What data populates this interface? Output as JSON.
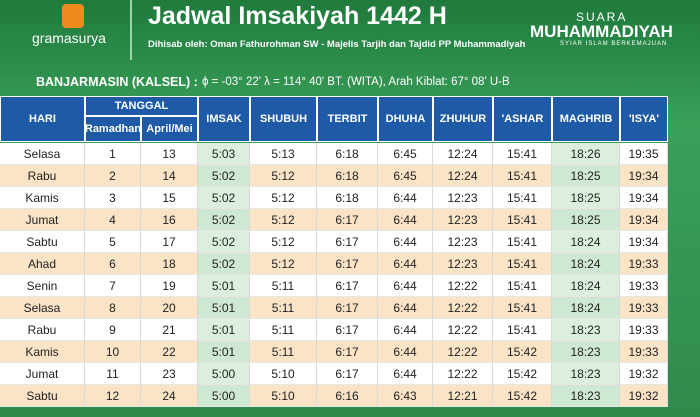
{
  "header": {
    "logo": "gramasurya",
    "title": "Jadwal Imsakiyah 1442 H",
    "subtitle": "Dihisab oleh: Oman Fathurohman SW - Majelis Tarjih dan Tajdid PP Muhammadiyah",
    "brand_top": "SUARA",
    "brand": "MUHAMMADIYAH",
    "brand_tagline": "SYIAR ISLAM BERKEMAJUAN"
  },
  "location": {
    "name": "BANJARMASIN (KALSEL) :",
    "coords": "ϕ = -03° 22'  λ = 114° 40'  BT. (WITA), Arah Kiblat: 67° 08' U-B"
  },
  "table": {
    "group_header": "TANGGAL",
    "columns": [
      "HARI",
      "Ramadhan",
      "April/Mei",
      "IMSAK",
      "SHUBUH",
      "TERBIT",
      "DHUHA",
      "ZHUHUR",
      "'ASHAR",
      "MAGHRIB",
      "'ISYA'"
    ],
    "rows": [
      [
        "Selasa",
        "1",
        "13",
        "5:03",
        "5:13",
        "6:18",
        "6:45",
        "12:24",
        "15:41",
        "18:26",
        "19:35"
      ],
      [
        "Rabu",
        "2",
        "14",
        "5:02",
        "5:12",
        "6:18",
        "6:45",
        "12:24",
        "15:41",
        "18:25",
        "19:34"
      ],
      [
        "Kamis",
        "3",
        "15",
        "5:02",
        "5:12",
        "6:18",
        "6:44",
        "12:23",
        "15:41",
        "18:25",
        "19:34"
      ],
      [
        "Jumat",
        "4",
        "16",
        "5:02",
        "5:12",
        "6:17",
        "6:44",
        "12:23",
        "15:41",
        "18:25",
        "19:34"
      ],
      [
        "Sabtu",
        "5",
        "17",
        "5:02",
        "5:12",
        "6:17",
        "6:44",
        "12:23",
        "15:41",
        "18:24",
        "19:34"
      ],
      [
        "Ahad",
        "6",
        "18",
        "5:02",
        "5:12",
        "6:17",
        "6:44",
        "12:23",
        "15:41",
        "18:24",
        "19:33"
      ],
      [
        "Senin",
        "7",
        "19",
        "5:01",
        "5:11",
        "6:17",
        "6:44",
        "12:22",
        "15:41",
        "18:24",
        "19:33"
      ],
      [
        "Selasa",
        "8",
        "20",
        "5:01",
        "5:11",
        "6:17",
        "6:44",
        "12:22",
        "15:41",
        "18:24",
        "19:33"
      ],
      [
        "Rabu",
        "9",
        "21",
        "5:01",
        "5:11",
        "6:17",
        "6:44",
        "12:22",
        "15:41",
        "18:23",
        "19:33"
      ],
      [
        "Kamis",
        "10",
        "22",
        "5:01",
        "5:11",
        "6:17",
        "6:44",
        "12:22",
        "15:42",
        "18:23",
        "19:33"
      ],
      [
        "Jumat",
        "11",
        "23",
        "5:00",
        "5:10",
        "6:17",
        "6:44",
        "12:22",
        "15:42",
        "18:23",
        "19:32"
      ],
      [
        "Sabtu",
        "12",
        "24",
        "5:00",
        "5:10",
        "6:16",
        "6:43",
        "12:21",
        "15:42",
        "18:23",
        "19:32"
      ]
    ]
  }
}
